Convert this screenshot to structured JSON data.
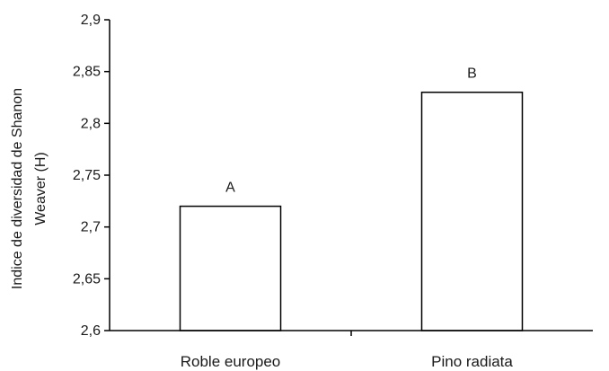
{
  "chart_data": {
    "type": "bar",
    "title": "",
    "xlabel": "",
    "ylabel_lines": [
      "Indice de diversidad de Shanon",
      "Weaver (H)"
    ],
    "categories": [
      "Roble europeo",
      "Pino radiata"
    ],
    "values": [
      2.72,
      2.83
    ],
    "bar_labels": [
      "A",
      "B"
    ],
    "ylim": [
      2.6,
      2.9
    ],
    "yticks": [
      2.6,
      2.65,
      2.7,
      2.75,
      2.8,
      2.85,
      2.9
    ],
    "ytick_labels": [
      "2,6",
      "2,65",
      "2,7",
      "2,75",
      "2,8",
      "2,85",
      "2,9"
    ],
    "grid": false,
    "legend": "none",
    "colors": {
      "bar_fill": "#ffffff",
      "bar_stroke": "#000000",
      "axis": "#000000"
    }
  }
}
